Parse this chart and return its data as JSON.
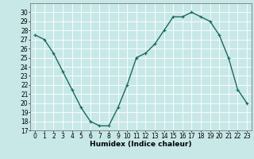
{
  "x": [
    0,
    1,
    2,
    3,
    4,
    5,
    6,
    7,
    8,
    9,
    10,
    11,
    12,
    13,
    14,
    15,
    16,
    17,
    18,
    19,
    20,
    21,
    22,
    23
  ],
  "y": [
    27.5,
    27.0,
    25.5,
    23.5,
    21.5,
    19.5,
    18.0,
    17.5,
    17.5,
    19.5,
    22.0,
    25.0,
    25.5,
    26.5,
    28.0,
    29.5,
    29.5,
    30.0,
    29.5,
    29.0,
    27.5,
    25.0,
    21.5,
    20.0
  ],
  "xlim": [
    -0.5,
    23.5
  ],
  "ylim": [
    17,
    31
  ],
  "yticks": [
    17,
    18,
    19,
    20,
    21,
    22,
    23,
    24,
    25,
    26,
    27,
    28,
    29,
    30
  ],
  "xticks": [
    0,
    1,
    2,
    3,
    4,
    5,
    6,
    7,
    8,
    9,
    10,
    11,
    12,
    13,
    14,
    15,
    16,
    17,
    18,
    19,
    20,
    21,
    22,
    23
  ],
  "xlabel": "Humidex (Indice chaleur)",
  "line_color": "#1a6b5a",
  "marker": "+",
  "background_color": "#c8e8e8",
  "grid_color": "#ffffff",
  "xlabel_fontsize": 6.5,
  "tick_fontsize": 5.5,
  "marker_size": 3,
  "marker_edge_width": 0.8,
  "line_width": 1.0
}
